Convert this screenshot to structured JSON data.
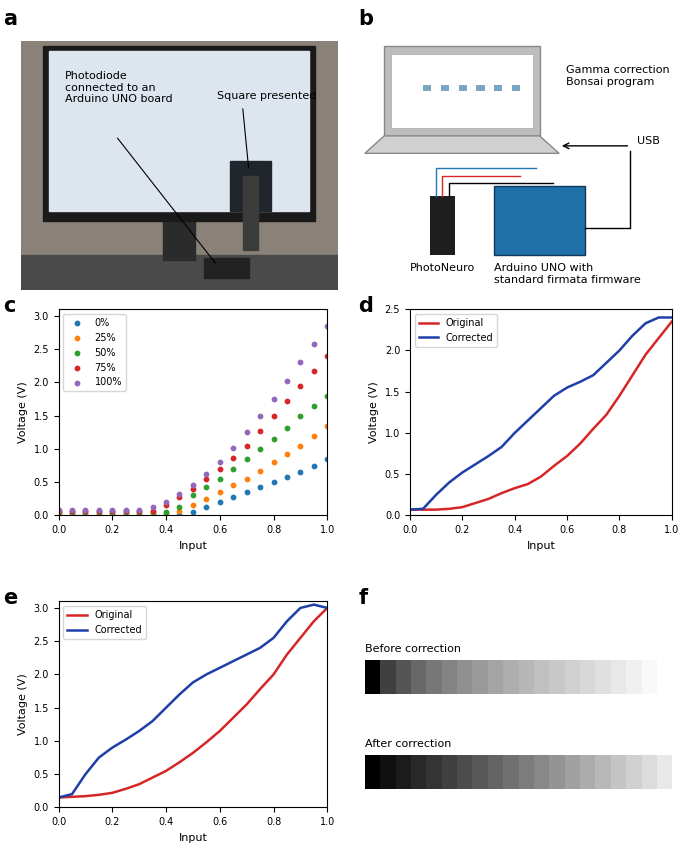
{
  "panels": {
    "a": {
      "panel_label": "a",
      "annotations": [
        "Photodiode\nconnected to an\nArduino UNO board",
        "Square presented"
      ]
    },
    "b": {
      "panel_label": "b",
      "program": "Gamma correction\nBonsai program",
      "link": "USB",
      "sensor": "PhotoNeuro",
      "board": "Arduino UNO with\nstandard firmata firmware"
    },
    "f": {
      "panel_label": "f",
      "rows": [
        {
          "title": "Before correction",
          "colors": [
            "#000000",
            "#404040",
            "#555555",
            "#686868",
            "#777777",
            "#848484",
            "#909090",
            "#9a9a9a",
            "#a4a4a4",
            "#aeaeae",
            "#b7b7b7",
            "#c0c0c0",
            "#c8c8c8",
            "#d0d0d0",
            "#d8d8d8",
            "#e0e0e0",
            "#e8e8e8",
            "#f0f0f0",
            "#f8f8f8",
            "#ffffff"
          ]
        },
        {
          "title": "After correction",
          "colors": [
            "#000000",
            "#101010",
            "#1c1c1c",
            "#282828",
            "#343434",
            "#404040",
            "#4c4c4c",
            "#585858",
            "#646464",
            "#707070",
            "#7c7c7c",
            "#888888",
            "#949494",
            "#a0a0a0",
            "#acacac",
            "#b8b8b8",
            "#c4c4c4",
            "#d0d0d0",
            "#dcdcdc",
            "#e8e8e8"
          ]
        }
      ]
    }
  },
  "chart_data": [
    {
      "panel_label": "c",
      "type": "scatter",
      "x_label": "Input",
      "y_label": "Voltage (V)",
      "x": [
        0.0,
        0.05,
        0.1,
        0.15,
        0.2,
        0.25,
        0.3,
        0.35,
        0.4,
        0.45,
        0.5,
        0.55,
        0.6,
        0.65,
        0.7,
        0.75,
        0.8,
        0.85,
        0.9,
        0.95,
        1.0
      ],
      "series": [
        {
          "name": "0%",
          "color": "#1f77b4",
          "marker": "o",
          "values": [
            0,
            0,
            0,
            0,
            0,
            0,
            0,
            0,
            0,
            0.01,
            0.05,
            0.12,
            0.2,
            0.27,
            0.35,
            0.42,
            0.5,
            0.57,
            0.65,
            0.75,
            0.85
          ]
        },
        {
          "name": "25%",
          "color": "#ff7f0e",
          "marker": "o",
          "values": [
            0.02,
            0.02,
            0.02,
            0.02,
            0.02,
            0.02,
            0.02,
            0.02,
            0.02,
            0.06,
            0.15,
            0.25,
            0.35,
            0.45,
            0.55,
            0.67,
            0.8,
            0.92,
            1.05,
            1.2,
            1.35
          ]
        },
        {
          "name": "50%",
          "color": "#2ca02c",
          "marker": "o",
          "values": [
            0.05,
            0.05,
            0.05,
            0.05,
            0.05,
            0.05,
            0.05,
            0.05,
            0.05,
            0.12,
            0.3,
            0.42,
            0.55,
            0.7,
            0.85,
            1.0,
            1.15,
            1.32,
            1.5,
            1.65,
            1.8
          ]
        },
        {
          "name": "75%",
          "color": "#d62728",
          "marker": "o",
          "values": [
            0.07,
            0.07,
            0.07,
            0.07,
            0.07,
            0.07,
            0.07,
            0.07,
            0.15,
            0.27,
            0.4,
            0.55,
            0.7,
            0.87,
            1.05,
            1.27,
            1.5,
            1.72,
            1.95,
            2.17,
            2.4
          ]
        },
        {
          "name": "100%",
          "color": "#9467bd",
          "marker": "o",
          "values": [
            0.08,
            0.08,
            0.08,
            0.08,
            0.08,
            0.08,
            0.08,
            0.12,
            0.2,
            0.32,
            0.45,
            0.62,
            0.8,
            1.02,
            1.25,
            1.5,
            1.75,
            2.02,
            2.3,
            2.58,
            2.85
          ]
        }
      ],
      "xlim": [
        0.0,
        1.0
      ],
      "xticks": [
        0.0,
        0.2,
        0.4,
        0.6,
        0.8,
        1.0
      ],
      "ylim": [
        0.0,
        3.1
      ],
      "yticks": [
        0.0,
        0.5,
        1.0,
        1.5,
        2.0,
        2.5,
        3.0
      ],
      "legend": "upper left",
      "grid": false
    },
    {
      "panel_label": "d",
      "type": "line",
      "x_label": "Input",
      "y_label": "Voltage (V)",
      "x": [
        0.0,
        0.05,
        0.1,
        0.15,
        0.2,
        0.25,
        0.3,
        0.35,
        0.4,
        0.45,
        0.5,
        0.55,
        0.6,
        0.65,
        0.7,
        0.75,
        0.8,
        0.85,
        0.9,
        0.95,
        1.0
      ],
      "series": [
        {
          "name": "Original",
          "color": "#d62728",
          "values": [
            0.07,
            0.07,
            0.07,
            0.08,
            0.1,
            0.15,
            0.2,
            0.27,
            0.33,
            0.38,
            0.47,
            0.6,
            0.72,
            0.87,
            1.05,
            1.22,
            1.45,
            1.7,
            1.95,
            2.15,
            2.35
          ]
        },
        {
          "name": "Corrected",
          "color": "#1f3fa8",
          "values": [
            0.07,
            0.08,
            0.25,
            0.4,
            0.52,
            0.62,
            0.72,
            0.83,
            1.0,
            1.15,
            1.3,
            1.45,
            1.55,
            1.62,
            1.7,
            1.85,
            2.0,
            2.18,
            2.33,
            2.4,
            2.4
          ]
        }
      ],
      "xlim": [
        0.0,
        1.0
      ],
      "xticks": [
        0.0,
        0.2,
        0.4,
        0.6,
        0.8,
        1.0
      ],
      "ylim": [
        0.0,
        2.5
      ],
      "yticks": [
        0.0,
        0.5,
        1.0,
        1.5,
        2.0,
        2.5
      ],
      "legend": "upper left",
      "grid": false
    },
    {
      "panel_label": "e",
      "type": "line",
      "x_label": "Input",
      "y_label": "Voltage (V)",
      "x": [
        0.0,
        0.05,
        0.1,
        0.15,
        0.2,
        0.25,
        0.3,
        0.35,
        0.4,
        0.45,
        0.5,
        0.55,
        0.6,
        0.65,
        0.7,
        0.75,
        0.8,
        0.85,
        0.9,
        0.95,
        1.0
      ],
      "series": [
        {
          "name": "Original",
          "color": "#d62728",
          "values": [
            0.15,
            0.16,
            0.17,
            0.19,
            0.22,
            0.28,
            0.35,
            0.45,
            0.55,
            0.68,
            0.82,
            0.98,
            1.15,
            1.35,
            1.55,
            1.78,
            2.0,
            2.3,
            2.55,
            2.8,
            3.0
          ]
        },
        {
          "name": "Corrected",
          "color": "#1f3fa8",
          "values": [
            0.15,
            0.2,
            0.5,
            0.75,
            0.9,
            1.02,
            1.15,
            1.3,
            1.5,
            1.7,
            1.88,
            2.0,
            2.1,
            2.2,
            2.3,
            2.4,
            2.55,
            2.8,
            3.0,
            3.05,
            3.0
          ]
        }
      ],
      "xlim": [
        0.0,
        1.0
      ],
      "xticks": [
        0.0,
        0.2,
        0.4,
        0.6,
        0.8,
        1.0
      ],
      "ylim": [
        0.0,
        3.1
      ],
      "yticks": [
        0.0,
        0.5,
        1.0,
        1.5,
        2.0,
        2.5,
        3.0
      ],
      "legend": "upper left",
      "grid": false
    }
  ]
}
